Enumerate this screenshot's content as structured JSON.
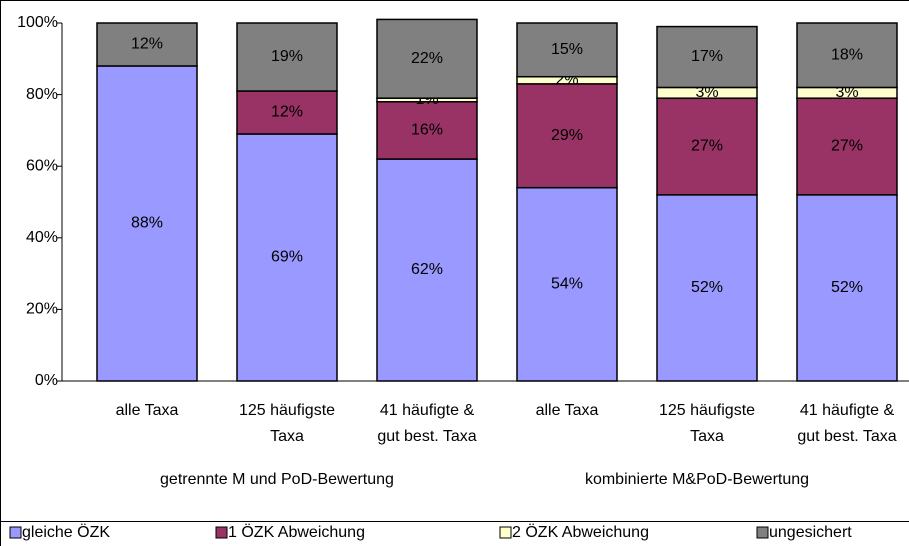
{
  "chart_data": {
    "type": "stacked_bar",
    "categories": [
      "alle Taxa",
      "125 häufigste\nTaxa",
      "41 häufigte &\ngut best. Taxa",
      "alle Taxa",
      "125 häufigste\nTaxa",
      "41 häufigte &\ngut best. Taxa"
    ],
    "groups": [
      "getrennte M und PoD-Bewertung",
      "kombinierte M&PoD-Bewertung"
    ],
    "series": [
      {
        "name": "gleiche ÖZK",
        "color": "#9999ff",
        "values": [
          88,
          69,
          62,
          54,
          52,
          52
        ],
        "value_labels": [
          "88%",
          "69%",
          "62%",
          "54%",
          "52%",
          "52%"
        ]
      },
      {
        "name": "1 ÖZK Abweichung",
        "color": "#993366",
        "values": [
          null,
          12,
          16,
          29,
          27,
          27
        ],
        "value_labels": [
          null,
          "12%",
          "16%",
          "29%",
          "27%",
          "27%"
        ]
      },
      {
        "name": "2 ÖZK Abweichung",
        "color": "#ffffcc",
        "values": [
          null,
          null,
          1,
          2,
          3,
          3
        ],
        "value_labels": [
          null,
          null,
          "1%",
          "2%",
          "3%",
          "3%"
        ]
      },
      {
        "name": "ungesichert",
        "color": "#808080",
        "values": [
          12,
          19,
          22,
          15,
          17,
          18
        ],
        "value_labels": [
          "12%",
          "19%",
          "22%",
          "15%",
          "17%",
          "18%"
        ]
      }
    ],
    "ylim": [
      0,
      100
    ],
    "yticks": [
      {
        "value": 0,
        "label": "0%"
      },
      {
        "value": 20,
        "label": "20%"
      },
      {
        "value": 40,
        "label": "40%"
      },
      {
        "value": 60,
        "label": "60%"
      },
      {
        "value": 80,
        "label": "80%"
      },
      {
        "value": 100,
        "label": "100%"
      }
    ]
  }
}
